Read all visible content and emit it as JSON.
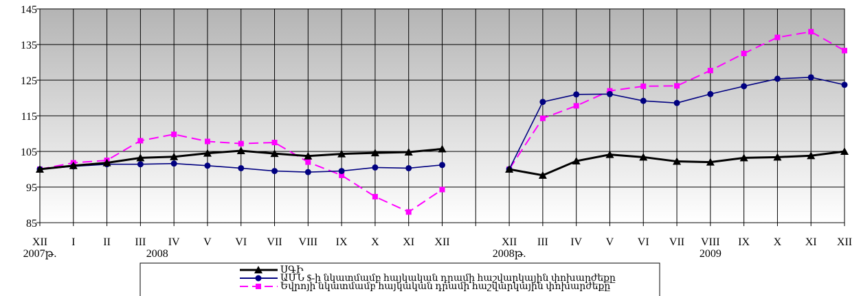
{
  "chart_data": {
    "type": "line",
    "ylim": [
      85,
      145
    ],
    "yticks": [
      85,
      95,
      105,
      115,
      125,
      135,
      145
    ],
    "categories": [
      "XII",
      "I",
      "II",
      "III",
      "IV",
      "V",
      "VI",
      "VII",
      "VIII",
      "IX",
      "X",
      "XI",
      "XII",
      "",
      "XII",
      "III",
      "IV",
      "V",
      "VI",
      "VII",
      "VIII",
      "IX",
      "X",
      "XI",
      "XII"
    ],
    "year_labels": [
      {
        "label": "2007թ.",
        "at": 0
      },
      {
        "label": "2008",
        "at": 3.5
      },
      {
        "label": "2008թ.",
        "at": 14
      },
      {
        "label": "2009",
        "at": 20
      }
    ],
    "grid": true,
    "legend_position": "bottom-center",
    "series": [
      {
        "name": "ՍԳԻ",
        "color": "#000000",
        "marker": "triangle",
        "dash": "solid",
        "values": [
          100,
          101,
          101.8,
          103.2,
          103.5,
          104.5,
          105.2,
          104.4,
          103.7,
          104.3,
          104.6,
          104.8,
          105.7,
          null,
          100,
          98.3,
          102.3,
          104.1,
          103.4,
          102.2,
          102,
          103.2,
          103.4,
          103.8,
          105
        ]
      },
      {
        "name": "ԱՄՆ $-ի նկատմամբ հայկական դրամի հաշվարկային փոխարժեքը",
        "color": "#000080",
        "marker": "circle",
        "dash": "solid",
        "values": [
          100,
          100.8,
          101.4,
          101.4,
          101.6,
          101,
          100.3,
          99.5,
          99.2,
          99.5,
          100.5,
          100.3,
          101.2,
          null,
          100,
          118.9,
          121,
          121.1,
          119.2,
          118.6,
          121.1,
          123.3,
          125.4,
          125.8,
          123.7
        ]
      },
      {
        "name": "Եվրոյի նկատմամբ հայկական դրամի հաշվարկային փոխարժեքը",
        "color": "#ff00ff",
        "marker": "square",
        "dash": "dashed",
        "values": [
          100,
          101.8,
          102.5,
          108,
          109.8,
          107.8,
          107.2,
          107.5,
          102,
          98.3,
          92.3,
          88,
          94.3,
          null,
          100,
          114.3,
          117.8,
          122,
          123.3,
          123.4,
          127.7,
          132.5,
          137,
          138.6,
          133.3
        ]
      }
    ]
  }
}
